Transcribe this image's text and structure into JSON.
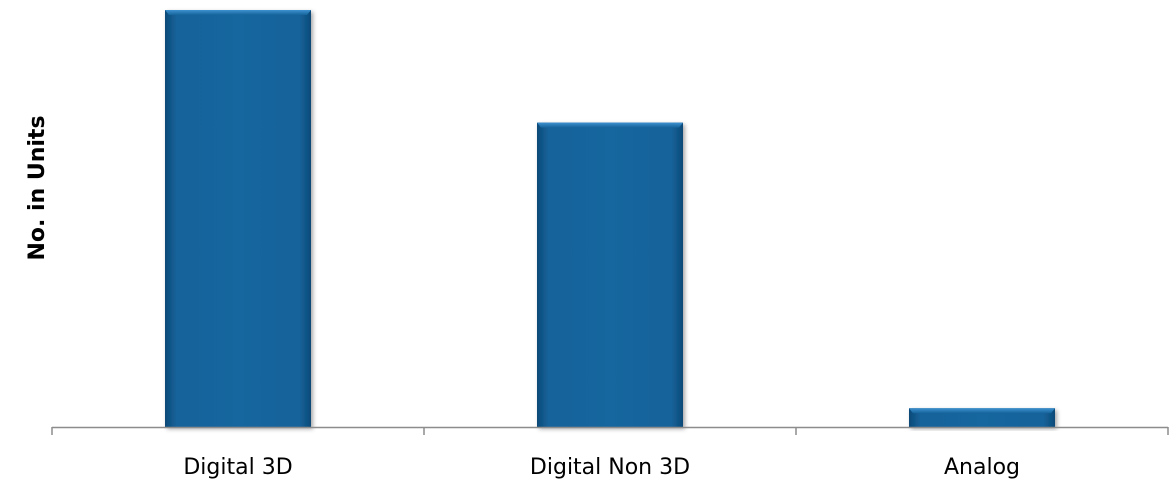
{
  "chart_data": {
    "type": "bar",
    "categories": [
      "Digital 3D",
      "Digital Non 3D",
      "Analog"
    ],
    "values": [
      100,
      73,
      4.5
    ],
    "title": "",
    "xlabel": "",
    "ylabel": "No. in Units",
    "ylim": [
      0,
      100
    ],
    "grid": false,
    "legend": "none",
    "colors": {
      "bar": "#15639b",
      "bar_highlight": "#2f86c2",
      "bar_shadow": "#0b3d63",
      "axis": "#8c8c8c"
    }
  }
}
